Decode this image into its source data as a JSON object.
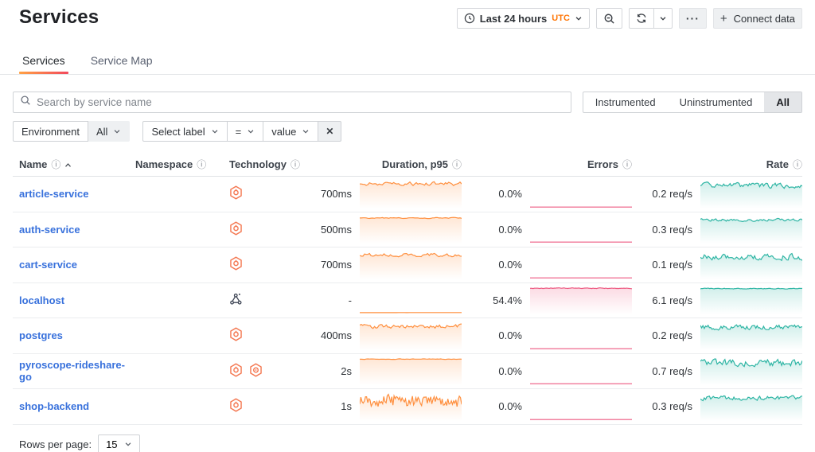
{
  "page": {
    "title": "Services"
  },
  "toolbar": {
    "time_label": "Last 24 hours",
    "time_zone": "UTC",
    "ellipsis": "···",
    "plus": "+",
    "connect_label": "Connect data"
  },
  "tabs": [
    {
      "label": "Services",
      "active": true
    },
    {
      "label": "Service Map",
      "active": false
    }
  ],
  "search": {
    "placeholder": "Search by service name"
  },
  "instrumentation_toggle": {
    "options": [
      "Instrumented",
      "Uninstrumented",
      "All"
    ],
    "selected": "All"
  },
  "filters": {
    "environment_label": "Environment",
    "environment_value": "All",
    "label_select": "Select label",
    "operator": "=",
    "value_select": "value",
    "remove_icon": "✕"
  },
  "icons": {
    "info": "ⓘ"
  },
  "table": {
    "columns": [
      {
        "label": "Name",
        "info": true,
        "sort": "asc",
        "align": "left"
      },
      {
        "label": "Namespace",
        "info": true,
        "align": "left"
      },
      {
        "label": "Technology",
        "info": true,
        "align": "left"
      },
      {
        "label": "Duration, p95",
        "info": true,
        "align": "right"
      },
      {
        "label": "Errors",
        "info": true,
        "align": "right"
      },
      {
        "label": "Rate",
        "info": true,
        "align": "right"
      }
    ],
    "rows": [
      {
        "name": "article-service",
        "namespace": "",
        "tech": [
          "opentelemetry"
        ],
        "duration": "700ms",
        "errors": "0.0%",
        "rate": "0.2 req/s",
        "duration_spark": {
          "base": 0.14,
          "amp": 0.11,
          "seed": 11,
          "fill": true,
          "smooth": 0.45,
          "n": 64
        },
        "errors_spark": {
          "base": 0.95,
          "amp": 0.0,
          "seed": 12,
          "fill": false,
          "smooth": 1,
          "n": 2
        },
        "rate_spark": {
          "base": 0.2,
          "amp": 0.13,
          "seed": 13,
          "fill": true,
          "smooth": 0.4,
          "n": 80
        }
      },
      {
        "name": "auth-service",
        "namespace": "",
        "tech": [
          "opentelemetry"
        ],
        "duration": "500ms",
        "errors": "0.0%",
        "rate": "0.3 req/s",
        "duration_spark": {
          "base": 0.11,
          "amp": 0.03,
          "seed": 21,
          "fill": true,
          "smooth": 0.5,
          "n": 64
        },
        "errors_spark": {
          "base": 0.95,
          "amp": 0.0,
          "seed": 22,
          "fill": false,
          "smooth": 1,
          "n": 2
        },
        "rate_spark": {
          "base": 0.18,
          "amp": 0.07,
          "seed": 23,
          "fill": true,
          "smooth": 0.45,
          "n": 80
        }
      },
      {
        "name": "cart-service",
        "namespace": "",
        "tech": [
          "opentelemetry"
        ],
        "duration": "700ms",
        "errors": "0.0%",
        "rate": "0.1 req/s",
        "duration_spark": {
          "base": 0.15,
          "amp": 0.08,
          "seed": 31,
          "fill": true,
          "smooth": 0.35,
          "n": 64
        },
        "errors_spark": {
          "base": 0.95,
          "amp": 0.0,
          "seed": 32,
          "fill": false,
          "smooth": 1,
          "n": 2
        },
        "rate_spark": {
          "base": 0.22,
          "amp": 0.14,
          "seed": 33,
          "fill": true,
          "smooth": 0.35,
          "n": 80
        }
      },
      {
        "name": "localhost",
        "namespace": "",
        "tech": [
          "network"
        ],
        "duration": "-",
        "errors": "54.4%",
        "rate": "6.1 req/s",
        "duration_spark": {
          "base": 0.94,
          "amp": 0.004,
          "seed": 41,
          "fill": false,
          "smooth": 0.9,
          "n": 40
        },
        "errors_spark": {
          "base": 0.09,
          "amp": 0.02,
          "seed": 42,
          "fill": true,
          "smooth": 0.5,
          "n": 90
        },
        "rate_spark": {
          "base": 0.1,
          "amp": 0.02,
          "seed": 43,
          "fill": true,
          "smooth": 0.5,
          "n": 90
        }
      },
      {
        "name": "postgres",
        "namespace": "",
        "tech": [
          "opentelemetry"
        ],
        "duration": "400ms",
        "errors": "0.0%",
        "rate": "0.2 req/s",
        "duration_spark": {
          "base": 0.17,
          "amp": 0.1,
          "seed": 51,
          "fill": true,
          "smooth": 0.4,
          "n": 70
        },
        "errors_spark": {
          "base": 0.95,
          "amp": 0.0,
          "seed": 52,
          "fill": false,
          "smooth": 1,
          "n": 2
        },
        "rate_spark": {
          "base": 0.2,
          "amp": 0.12,
          "seed": 53,
          "fill": true,
          "smooth": 0.4,
          "n": 80
        }
      },
      {
        "name": "pyroscope-rideshare-go",
        "namespace": "",
        "tech": [
          "opentelemetry",
          "beyla"
        ],
        "duration": "2s",
        "errors": "0.0%",
        "rate": "0.7 req/s",
        "duration_spark": {
          "base": 0.09,
          "amp": 0.02,
          "seed": 61,
          "fill": true,
          "smooth": 0.6,
          "n": 64
        },
        "errors_spark": {
          "base": 0.95,
          "amp": 0.0,
          "seed": 62,
          "fill": false,
          "smooth": 1,
          "n": 2
        },
        "rate_spark": {
          "base": 0.22,
          "amp": 0.15,
          "seed": 63,
          "fill": true,
          "smooth": 0.3,
          "n": 80
        }
      },
      {
        "name": "shop-backend",
        "namespace": "",
        "tech": [
          "opentelemetry"
        ],
        "duration": "1s",
        "errors": "0.0%",
        "rate": "0.3 req/s",
        "duration_spark": {
          "base": 0.3,
          "amp": 0.24,
          "seed": 71,
          "fill": true,
          "smooth": 0.12,
          "n": 90
        },
        "errors_spark": {
          "base": 0.95,
          "amp": 0.0,
          "seed": 72,
          "fill": false,
          "smooth": 1,
          "n": 2
        },
        "rate_spark": {
          "base": 0.2,
          "amp": 0.11,
          "seed": 73,
          "fill": true,
          "smooth": 0.4,
          "n": 80
        }
      }
    ]
  },
  "pagination": {
    "label": "Rows per page:",
    "value": "15"
  },
  "colors": {
    "link_blue": "#3871dc",
    "duration_orange": "#ff8f3e",
    "errors_pink": "#ed5981",
    "rate_teal": "#2eb5a4",
    "otel_icon_orange": "#f4764f",
    "network_icon_gray": "#3b4252",
    "utc_orange": "#ff780a",
    "tab_gradient_from": "#ffa245",
    "tab_gradient_to": "#f2495c"
  }
}
